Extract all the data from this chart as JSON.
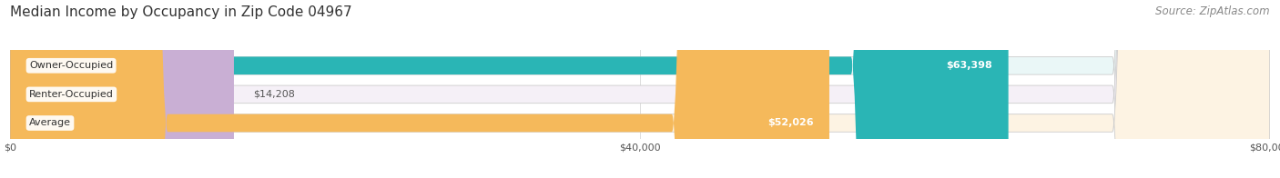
{
  "title": "Median Income by Occupancy in Zip Code 04967",
  "source": "Source: ZipAtlas.com",
  "categories": [
    "Owner-Occupied",
    "Renter-Occupied",
    "Average"
  ],
  "values": [
    63398,
    14208,
    52026
  ],
  "labels": [
    "$63,398",
    "$14,208",
    "$52,026"
  ],
  "bar_colors": [
    "#2ab5b5",
    "#c9afd4",
    "#f5b95b"
  ],
  "bar_bg_colors": [
    "#eaf7f7",
    "#f5f0f7",
    "#fdf3e3"
  ],
  "xlim": [
    0,
    80000
  ],
  "xtick_labels": [
    "$0",
    "$40,000",
    "$80,000"
  ],
  "xtick_values": [
    0,
    40000,
    80000
  ],
  "title_fontsize": 11,
  "source_fontsize": 8.5,
  "label_fontsize": 8,
  "category_fontsize": 8,
  "bar_height": 0.62,
  "figsize": [
    14.06,
    1.96
  ],
  "dpi": 100
}
